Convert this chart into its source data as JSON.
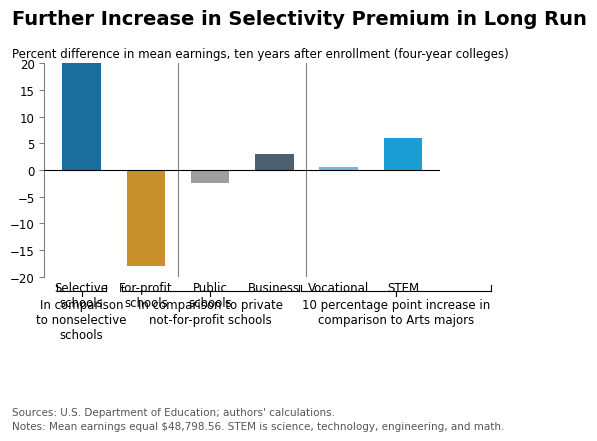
{
  "title": "Further Increase in Selectivity Premium in Long Run",
  "subtitle": "Percent difference in mean earnings, ten years after enrollment (four-year colleges)",
  "categories": [
    "Selective\nschools",
    "For-profit\nschools",
    "Public\nschools",
    "Business",
    "Vocational",
    "STEM"
  ],
  "values": [
    20.5,
    -18.0,
    -2.5,
    3.0,
    0.5,
    6.0
  ],
  "bar_colors": [
    "#1a6e9e",
    "#c8902a",
    "#9e9e9e",
    "#4d6070",
    "#7ab5d4",
    "#1b9ed4"
  ],
  "ylim": [
    -20,
    20
  ],
  "yticks": [
    -20,
    -15,
    -10,
    -5,
    0,
    5,
    10,
    15,
    20
  ],
  "vline_positions": [
    1.5,
    3.5
  ],
  "source_text": "Sources: U.S. Department of Education; authors' calculations.",
  "notes_text": "Notes: Mean earnings equal $48,798.56. STEM is science, technology, engineering, and math.",
  "background_color": "#ffffff",
  "title_fontsize": 14,
  "subtitle_fontsize": 8.5,
  "tick_fontsize": 8.5,
  "label_fontsize": 8.5,
  "footnote_fontsize": 7.5,
  "brace_label_1": "In comparison\nto nonselective\nschools",
  "brace_label_2": "In comparison to private\nnot-for-profit schools",
  "brace_label_3": "10 percentage point increase in\ncomparison to Arts majors"
}
